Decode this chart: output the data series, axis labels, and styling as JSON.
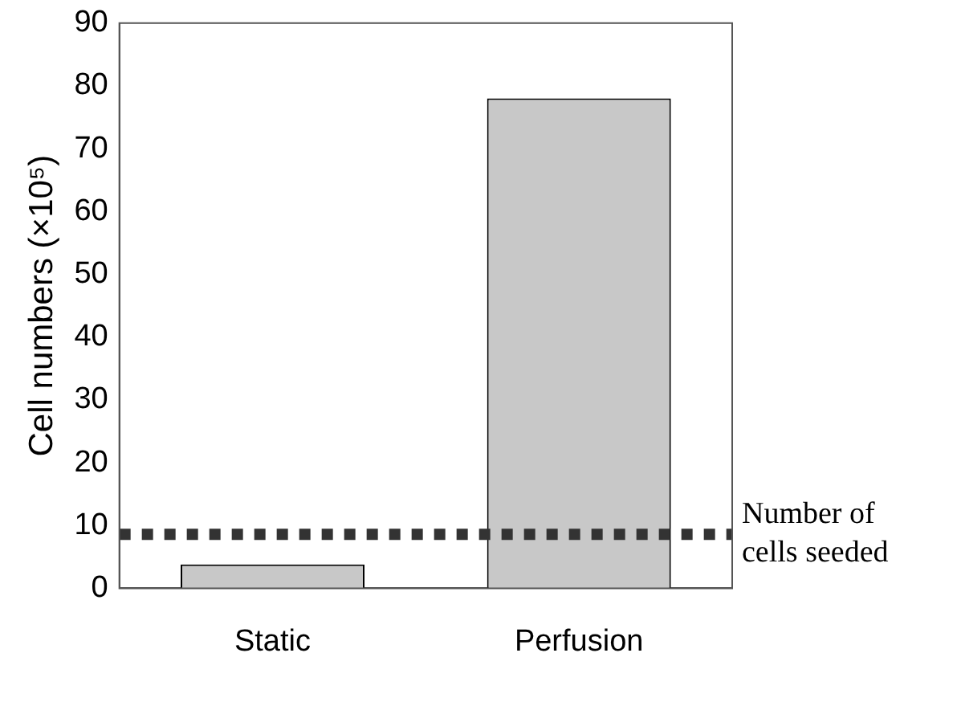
{
  "chart_data": {
    "type": "bar",
    "categories": [
      "Static",
      "Perfusion"
    ],
    "values": [
      3.8,
      78
    ],
    "color": "#c8c8c8",
    "ylabel": "Cell numbers (×10⁵)",
    "ylim": [
      0,
      90
    ],
    "yticks": [
      0,
      10,
      20,
      30,
      40,
      50,
      60,
      70,
      80,
      90
    ],
    "grid": false,
    "legend": false,
    "ref_lines": [
      {
        "axis": "y",
        "value": 8.6,
        "label": "Number of cells seeded",
        "color": "#333333",
        "line_style": "dotted"
      }
    ]
  }
}
